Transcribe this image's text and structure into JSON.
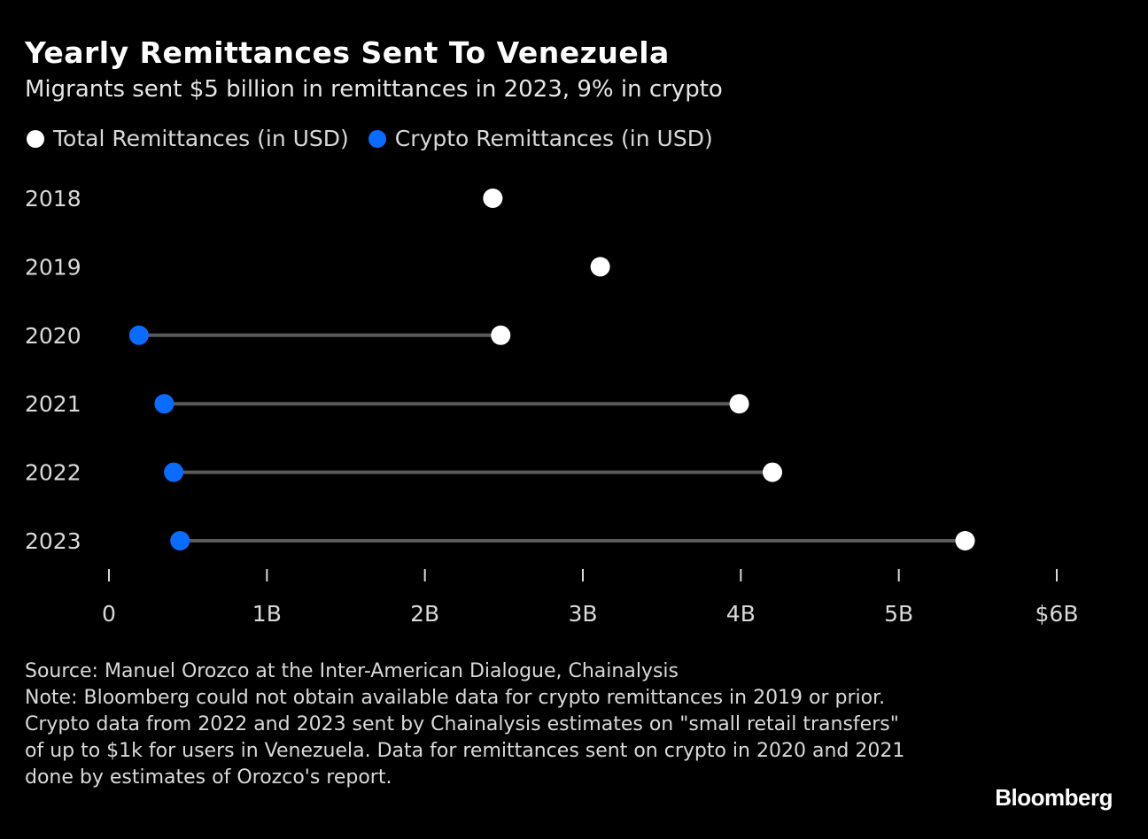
{
  "chart_data": {
    "type": "dumbbell",
    "title": "Yearly Remittances Sent To Venezuela",
    "subtitle": "Migrants sent $5 billion in remittances in 2023, 9% in crypto",
    "legend_placement": "top-left",
    "categories": [
      "2018",
      "2019",
      "2020",
      "2021",
      "2022",
      "2023"
    ],
    "series": [
      {
        "name": "Total Remittances (in USD)",
        "color": "#ffffff",
        "values": [
          2.43,
          3.11,
          2.48,
          3.99,
          4.2,
          5.42
        ]
      },
      {
        "name": "Crypto Remittances (in USD)",
        "color": "#0a6cff",
        "values": [
          null,
          null,
          0.19,
          0.35,
          0.41,
          0.45
        ]
      }
    ],
    "xlim": [
      0,
      6
    ],
    "x_unit": "billion USD",
    "x_ticks": [
      0,
      1,
      2,
      3,
      4,
      5,
      6
    ],
    "x_tick_labels": [
      "0",
      "1B",
      "2B",
      "3B",
      "4B",
      "5B",
      "$6B"
    ],
    "connector_color": "#5a5a5a",
    "grid": false
  },
  "footer": {
    "source": "Source: Manuel Orozco at the Inter-American Dialogue, Chainalysis",
    "note": "Note: Bloomberg could not obtain available data for crypto remittances in 2019 or prior. Crypto data from 2022 and 2023 sent by Chainalysis estimates on \"small retail transfers\" of up to $1k for users in Venezuela. Data for remittances sent on crypto in 2020 and 2021 done by estimates of Orozco's report.",
    "logo": "Bloomberg"
  }
}
